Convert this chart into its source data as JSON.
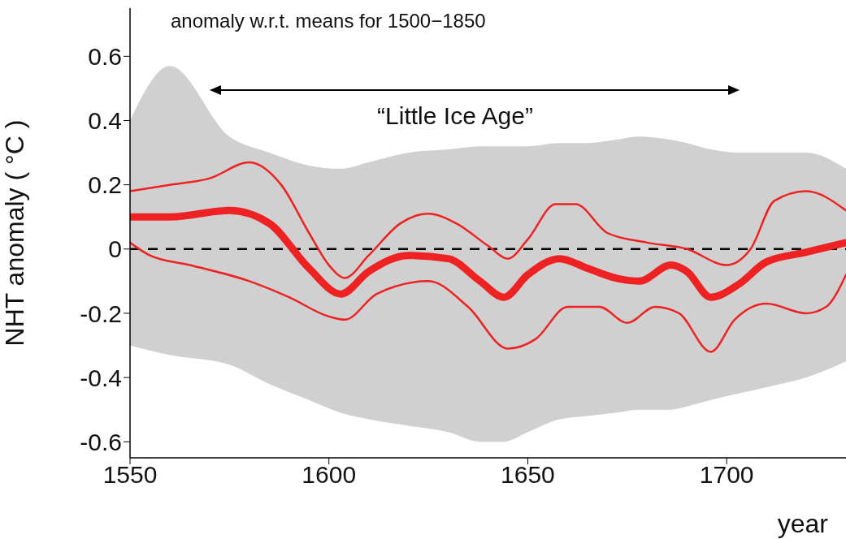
{
  "chart_data": {
    "type": "line",
    "xlabel": "year",
    "ylabel": "NHT anomaly ( °C )",
    "annotations": [
      "anomaly w.r.t. means for 1500−1850",
      "“Little Ice Age”"
    ],
    "xlim": [
      1550,
      1730
    ],
    "xticks": [
      1550,
      1600,
      1650,
      1700
    ],
    "ylim": [
      -0.65,
      0.75
    ],
    "yticks": [
      -0.6,
      -0.4,
      -0.2,
      0,
      0.2,
      0.4,
      0.6
    ],
    "marker": "none",
    "ref_lines": [
      {
        "axis": "y",
        "value": 0,
        "color": "#000000",
        "line_style": "dashed"
      }
    ],
    "series": [
      {
        "color": "#ee2222",
        "x": [
          1550,
          1560,
          1575,
          1585,
          1595,
          1603,
          1610,
          1620,
          1630,
          1638,
          1644,
          1650,
          1658,
          1665,
          1672,
          1678,
          1686,
          1690,
          1696,
          1703,
          1710,
          1720,
          1730
        ],
        "values": [
          0.1,
          0.1,
          0.12,
          0.08,
          -0.06,
          -0.14,
          -0.07,
          -0.02,
          -0.03,
          -0.1,
          -0.15,
          -0.08,
          -0.03,
          -0.06,
          -0.09,
          -0.1,
          -0.05,
          -0.07,
          -0.15,
          -0.11,
          -0.04,
          -0.01,
          0.02
        ],
        "lower": [
          -0.3,
          -0.33,
          -0.36,
          -0.42,
          -0.47,
          -0.51,
          -0.53,
          -0.55,
          -0.57,
          -0.6,
          -0.6,
          -0.57,
          -0.53,
          -0.52,
          -0.51,
          -0.5,
          -0.5,
          -0.49,
          -0.47,
          -0.45,
          -0.43,
          -0.4,
          -0.35
        ],
        "upper": [
          0.4,
          0.57,
          0.35,
          0.3,
          0.26,
          0.25,
          0.27,
          0.3,
          0.31,
          0.32,
          0.32,
          0.32,
          0.33,
          0.33,
          0.34,
          0.35,
          0.34,
          0.33,
          0.31,
          0.3,
          0.3,
          0.3,
          0.25
        ]
      },
      {
        "color": "#ee2222",
        "x": [
          1550,
          1560,
          1570,
          1580,
          1588,
          1595,
          1600,
          1604,
          1610,
          1618,
          1625,
          1632,
          1640,
          1645,
          1650,
          1657,
          1662,
          1670,
          1680,
          1690,
          1700,
          1706,
          1712,
          1720,
          1730
        ],
        "values": [
          0.18,
          0.2,
          0.22,
          0.27,
          0.2,
          0.05,
          -0.05,
          -0.09,
          -0.02,
          0.08,
          0.11,
          0.08,
          0.01,
          -0.03,
          0.03,
          0.14,
          0.14,
          0.05,
          0.02,
          0.0,
          -0.05,
          0.0,
          0.15,
          0.18,
          0.12
        ]
      },
      {
        "color": "#ee2222",
        "x": [
          1550,
          1555,
          1565,
          1580,
          1590,
          1600,
          1604,
          1612,
          1625,
          1635,
          1645,
          1652,
          1660,
          1668,
          1675,
          1682,
          1688,
          1696,
          1702,
          1710,
          1720,
          1725,
          1730
        ],
        "values": [
          0.02,
          -0.02,
          -0.05,
          -0.1,
          -0.15,
          -0.21,
          -0.22,
          -0.14,
          -0.1,
          -0.18,
          -0.31,
          -0.28,
          -0.18,
          -0.18,
          -0.23,
          -0.18,
          -0.2,
          -0.32,
          -0.22,
          -0.17,
          -0.2,
          -0.18,
          -0.08
        ]
      }
    ]
  }
}
